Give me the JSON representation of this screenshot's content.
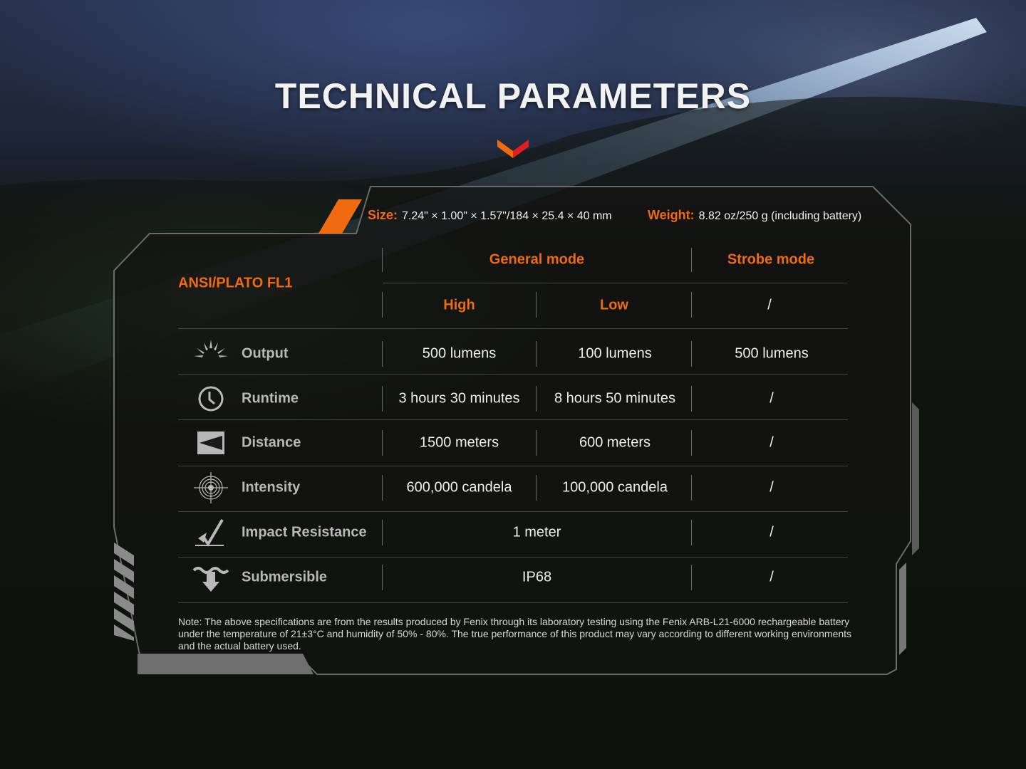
{
  "title": "TECHNICAL PARAMETERS",
  "colors": {
    "accent": "#f06a10",
    "accent_red": "#e02020",
    "text": "#f0f0f0",
    "label": "#b8b8b8"
  },
  "specs": {
    "size_label": "Size:",
    "size_value": "7.24\" × 1.00\" × 1.57\"/184 × 25.4 × 40 mm",
    "weight_label": "Weight:",
    "weight_value": "8.82 oz/250 g (including battery)"
  },
  "table": {
    "standard": "ANSI/PLATO FL1",
    "general_mode": "General mode",
    "strobe_mode": "Strobe mode",
    "high": "High",
    "low": "Low",
    "strobe_sub": "/",
    "rows": [
      {
        "icon": "output-icon",
        "label": "Output",
        "high": "500 lumens",
        "low": "100 lumens",
        "strobe": "500 lumens"
      },
      {
        "icon": "clock-icon",
        "label": "Runtime",
        "high": "3 hours 30 minutes",
        "low": "8 hours 50 minutes",
        "strobe": "/"
      },
      {
        "icon": "distance-icon",
        "label": "Distance",
        "high": "1500  meters",
        "low": "600 meters",
        "strobe": "/"
      },
      {
        "icon": "target-icon",
        "label": "Intensity",
        "high": "600,000 candela",
        "low": "100,000 candela",
        "strobe": "/"
      },
      {
        "icon": "impact-icon",
        "label": "Impact Resistance",
        "general": "1 meter",
        "strobe": "/"
      },
      {
        "icon": "submersible-icon",
        "label": "Submersible",
        "general": "IP68",
        "strobe": "/"
      }
    ]
  },
  "note": "Note: The above specifications are from the results produced by Fenix through its laboratory testing using the Fenix ARB-L21-6000 rechargeable battery under the temperature of 21±3°C and humidity of 50% - 80%. The true performance of this product may vary according to different working environments and the actual battery used."
}
